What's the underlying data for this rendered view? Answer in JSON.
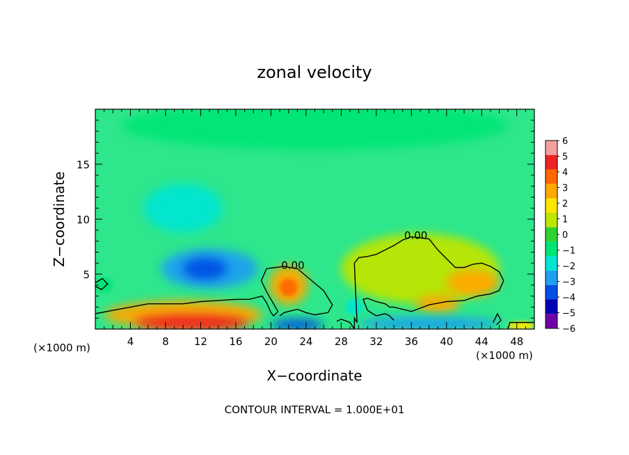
{
  "chart_data": {
    "type": "heatmap",
    "title": "zonal velocity",
    "xlabel": "X−coordinate",
    "ylabel": "Z−coordinate",
    "x_unit_left": "(×1000 m)",
    "x_unit_right": "(×1000 m)",
    "footer": "CONTOUR INTERVAL = 1.000E+01",
    "xlim": [
      0,
      50
    ],
    "ylim": [
      0,
      20
    ],
    "x_ticks": [
      "4",
      "8",
      "12",
      "16",
      "20",
      "24",
      "28",
      "32",
      "36",
      "40",
      "44",
      "48"
    ],
    "y_ticks": [
      "5",
      "10",
      "15"
    ],
    "contour_label": "0.00",
    "contour_labels": [
      {
        "text": "0.00",
        "x": 22.5,
        "z": 5.8
      },
      {
        "text": "0.00",
        "x": 36.5,
        "z": 8.5
      }
    ],
    "colorbar_ticks": [
      "6",
      "5",
      "4",
      "3",
      "2",
      "1",
      "0",
      "−1",
      "−2",
      "−3",
      "−4",
      "−5",
      "−6"
    ],
    "colorbar_colors": [
      "#f4a0a0",
      "#ee2222",
      "#ff6600",
      "#ffa800",
      "#ffe600",
      "#bde600",
      "#2ed22e",
      "#00e676",
      "#00e6d2",
      "#1ea0f0",
      "#0050e6",
      "#0000b4",
      "#7000a8"
    ],
    "background_color": "#2ee68c",
    "features": [
      {
        "name": "upper-cyan-layer",
        "x": 25,
        "z": 18.5,
        "rx": 22,
        "rz": 2.2,
        "value": -1
      },
      {
        "name": "left-upper-negative",
        "x": 10,
        "z": 11,
        "rx": 4.5,
        "rz": 2.2,
        "value": -2.5
      },
      {
        "name": "left-mid-negative",
        "x": 13,
        "z": 5.5,
        "rx": 5.5,
        "rz": 1.8,
        "value": -3
      },
      {
        "name": "left-mid-negative-core",
        "x": 12.5,
        "z": 5.5,
        "rx": 2.5,
        "rz": 1,
        "value": -4
      },
      {
        "name": "left-small-cell",
        "x": 1,
        "z": 4,
        "rx": 1,
        "rz": 0.7,
        "value": -1.5
      },
      {
        "name": "left-surface-positive",
        "x": 10,
        "z": 1.3,
        "rx": 9,
        "rz": 1.3,
        "value": 3
      },
      {
        "name": "left-surface-positive-core",
        "x": 11,
        "z": 0.6,
        "rx": 6.5,
        "rz": 0.7,
        "value": 5
      },
      {
        "name": "mid-positive-cell",
        "x": 22,
        "z": 4,
        "rx": 2.2,
        "rz": 1.8,
        "value": 3
      },
      {
        "name": "mid-positive-core",
        "x": 22,
        "z": 3.8,
        "rx": 1,
        "rz": 0.8,
        "value": 4
      },
      {
        "name": "right-positive-region",
        "x": 37,
        "z": 5.5,
        "rx": 9,
        "rz": 3.2,
        "value": 1
      },
      {
        "name": "right-positive-cell",
        "x": 43,
        "z": 4.2,
        "rx": 3,
        "rz": 1.2,
        "value": 3
      },
      {
        "name": "right-positive-low",
        "x": 39,
        "z": 2.3,
        "rx": 2.5,
        "rz": 0.8,
        "value": 2.5
      },
      {
        "name": "surface-negative-mid",
        "x": 23,
        "z": 0.4,
        "rx": 3,
        "rz": 0.5,
        "value": -4
      },
      {
        "name": "surface-negative-right",
        "x": 38,
        "z": 0.5,
        "rx": 8,
        "rz": 0.6,
        "value": -3.5
      },
      {
        "name": "cyan-patch-29",
        "x": 29.5,
        "z": 2,
        "rx": 1,
        "rz": 0.7,
        "value": -2
      },
      {
        "name": "surface-positive-48",
        "x": 48.5,
        "z": 0.3,
        "rx": 1.5,
        "rz": 0.4,
        "value": 2
      }
    ],
    "grid": false
  }
}
